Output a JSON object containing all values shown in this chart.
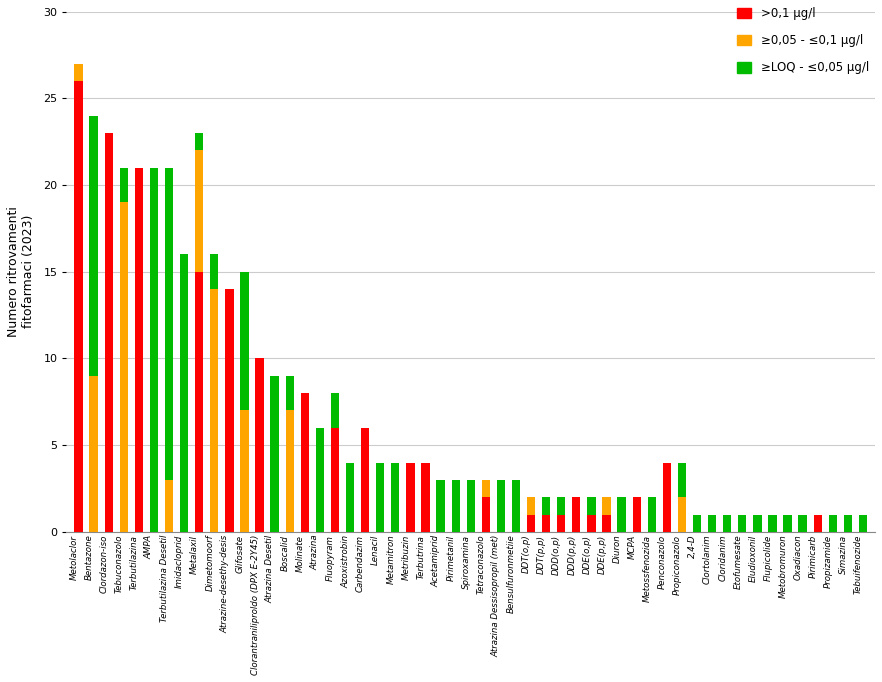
{
  "categories": [
    "Metolaclor",
    "Bentazone",
    "Clordazon-iso",
    "Tebuconazolo",
    "Terbutilazina",
    "AMPA",
    "Terbutilazina Desetil",
    "Imidacloprid",
    "Metalaxil",
    "Dimetomoorf",
    "Atrazine-desethy-desis",
    "Glifosate",
    "Clorantraniliproldo (DPX E-2Y45)",
    "Atrazina Desetil",
    "Boscalid",
    "Molinate",
    "Atrazina",
    "Fluopyram",
    "Azoxistrobin",
    "Carbendazim",
    "Lenacil",
    "Metamitron",
    "Metribuzin",
    "Terbutrina",
    "Acetamiprid",
    "Pirimetanil",
    "Spiroxamina",
    "Tetraconazolo",
    "Atrazina Dessisopropil (met)",
    "Bensulfuronmetiie",
    "DDT(o,p)",
    "DDT(p,p)",
    "DDD(o,p)",
    "DDD(p,p)",
    "DDE(o,p)",
    "DDE(p,p)",
    "Diuron",
    "MCPA",
    "Metossfenozida",
    "Penconazolo",
    "Propiconazolo",
    "2,4-D",
    "Clortolanim",
    "Cloridanim",
    "Etofumesate",
    "Eludioxonil",
    "Flupicolide",
    "Metobromuron",
    "Oxadiacon",
    "Pirimicarb",
    "Propizamide",
    "Simazina",
    "Tebuifenozide"
  ],
  "red": [
    26,
    0,
    23,
    0,
    21,
    0,
    0,
    0,
    15,
    0,
    14,
    0,
    10,
    0,
    0,
    8,
    0,
    6,
    0,
    6,
    0,
    0,
    4,
    4,
    0,
    0,
    0,
    2,
    0,
    0,
    1,
    1,
    1,
    2,
    1,
    1,
    0,
    2,
    0,
    4,
    0,
    0,
    0,
    0,
    0,
    0,
    0,
    0,
    0,
    1,
    0,
    0,
    0
  ],
  "orange": [
    1,
    9,
    0,
    19,
    0,
    0,
    3,
    0,
    7,
    14,
    0,
    7,
    0,
    0,
    7,
    0,
    0,
    0,
    0,
    0,
    0,
    0,
    0,
    0,
    0,
    0,
    0,
    1,
    0,
    0,
    1,
    0,
    0,
    0,
    0,
    1,
    0,
    0,
    0,
    0,
    2,
    0,
    0,
    0,
    0,
    0,
    0,
    0,
    0,
    0,
    0,
    0,
    0
  ],
  "green": [
    0,
    15,
    0,
    2,
    0,
    21,
    18,
    16,
    1,
    2,
    0,
    8,
    0,
    9,
    2,
    0,
    6,
    2,
    4,
    0,
    4,
    4,
    0,
    0,
    3,
    3,
    3,
    0,
    3,
    3,
    0,
    1,
    1,
    0,
    1,
    0,
    2,
    0,
    2,
    0,
    2,
    1,
    1,
    1,
    1,
    1,
    1,
    1,
    1,
    0,
    1,
    1,
    1
  ],
  "colors": {
    "red": "#FF0000",
    "orange": "#FFA500",
    "green": "#00BB00"
  },
  "ylabel": "Numero ritrovamenti\nfitofarmaci (2023)",
  "ylim": [
    0,
    30
  ],
  "yticks": [
    0,
    5,
    10,
    15,
    20,
    25,
    30
  ],
  "legend_labels": [
    ">0,1 μg/l",
    "≥0,05 - ≤0,1 μg/l",
    "≥LOQ - ≤0,05 μg/l"
  ]
}
